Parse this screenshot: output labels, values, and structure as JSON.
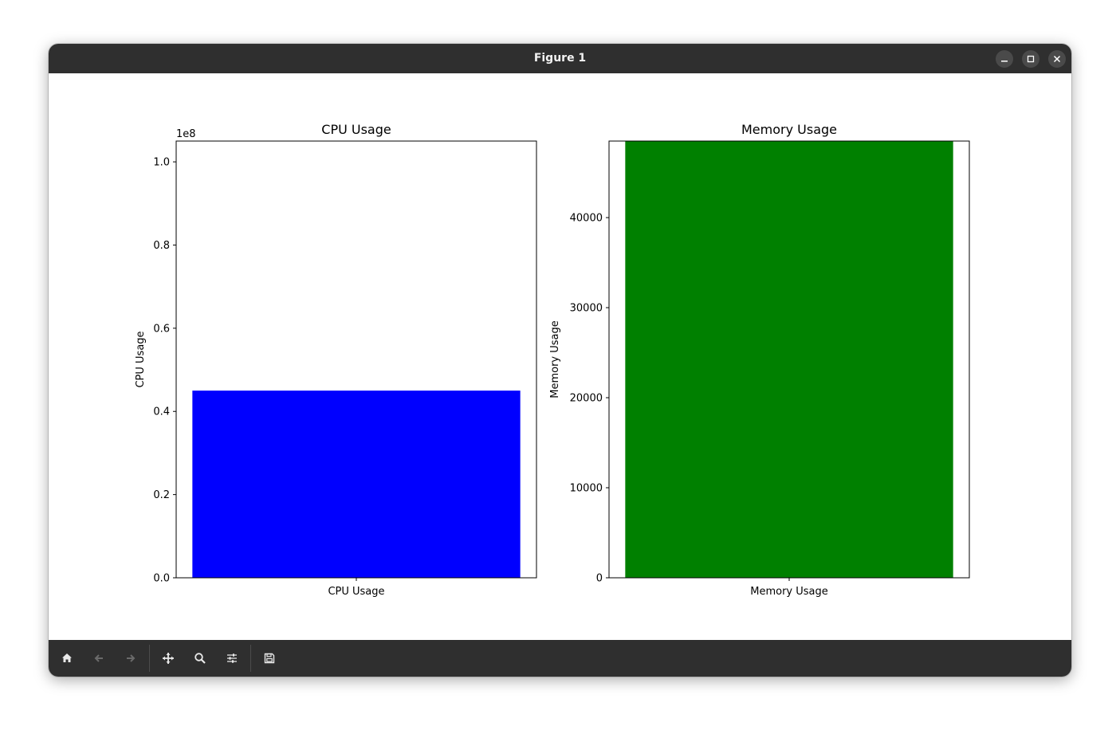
{
  "window": {
    "title": "Figure 1"
  },
  "titlebar_buttons": [
    "minimize-icon",
    "maximize-icon",
    "close-icon"
  ],
  "toolbar": {
    "buttons": [
      "home-icon",
      "back-arrow-icon",
      "forward-arrow-icon",
      "pan-icon",
      "zoom-icon",
      "configure-subplots-icon",
      "save-icon"
    ]
  },
  "colors": {
    "titlebar": "#2f2f2f",
    "toolbar": "#2f2f2f",
    "cpu_bar": "#0000ff",
    "memory_bar": "#008000"
  },
  "chart_data": [
    {
      "type": "bar",
      "title": "CPU Usage",
      "xlabel": "",
      "ylabel": "CPU Usage",
      "categories": [
        "CPU Usage"
      ],
      "values": [
        45000000
      ],
      "ylim": [
        0,
        105000000
      ],
      "yticks": [
        0,
        20000000,
        40000000,
        60000000,
        80000000,
        100000000
      ],
      "ytick_labels": [
        "0.0",
        "0.2",
        "0.4",
        "0.6",
        "0.8",
        "1.0"
      ],
      "offset_text": "1e8",
      "bar_color": "#0000ff",
      "grid": false
    },
    {
      "type": "bar",
      "title": "Memory Usage",
      "xlabel": "",
      "ylabel": "Memory Usage",
      "categories": [
        "Memory Usage"
      ],
      "values": [
        48500
      ],
      "ylim": [
        0,
        48500
      ],
      "yticks": [
        0,
        10000,
        20000,
        30000,
        40000
      ],
      "ytick_labels": [
        "0",
        "10000",
        "20000",
        "30000",
        "40000"
      ],
      "offset_text": "",
      "bar_color": "#008000",
      "grid": false
    }
  ]
}
